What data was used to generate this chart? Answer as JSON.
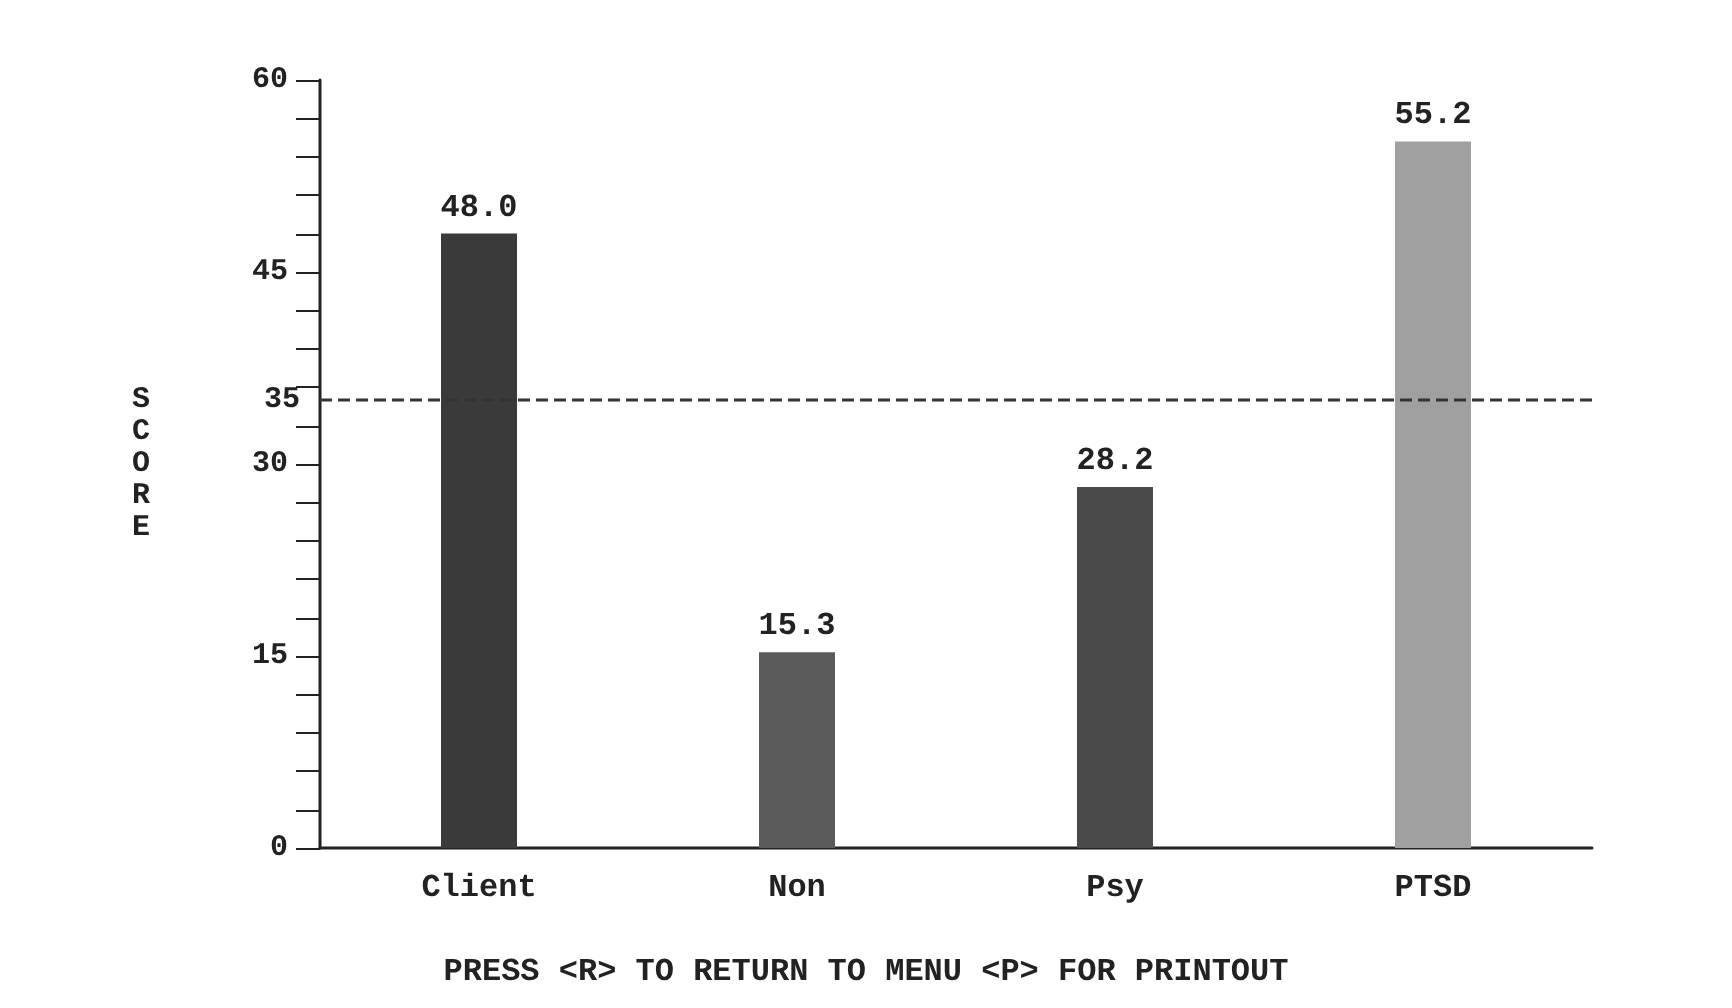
{
  "chart_data": {
    "type": "bar",
    "ylabel": "SCORE",
    "categories": [
      "Client",
      "Non",
      "Psy",
      "PTSD"
    ],
    "values": [
      48.0,
      15.3,
      28.2,
      55.2
    ],
    "colors": [
      "#3a3a3a",
      "#5a5a5a",
      "#4a4a4a",
      "#a0a0a0"
    ],
    "value_labels": [
      "48.0",
      "15.3",
      "28.2",
      "55.2"
    ],
    "ylim": [
      0,
      60
    ],
    "yticks": [
      0,
      {
        "value": 3,
        "label": null
      },
      {
        "value": 6,
        "label": null
      },
      {
        "value": 9,
        "label": null
      },
      {
        "value": 12,
        "label": null
      },
      15,
      {
        "value": 18,
        "label": null
      },
      {
        "value": 21,
        "label": null
      },
      {
        "value": 24,
        "label": null
      },
      {
        "value": 27,
        "label": null
      },
      30,
      {
        "value": 33,
        "label": null
      },
      {
        "value": 36,
        "label": null
      },
      {
        "value": 39,
        "label": null
      },
      {
        "value": 42,
        "label": null
      },
      45,
      {
        "value": 48,
        "label": null
      },
      {
        "value": 51,
        "label": null
      },
      {
        "value": 54,
        "label": null
      },
      {
        "value": 57,
        "label": null
      },
      60
    ],
    "ref_lines": [
      {
        "axis": "y",
        "value": 35,
        "label": "35",
        "line_style": "dashed",
        "color": "#333333"
      }
    ],
    "annotations": [
      "PRESS <R> TO RETURN TO MENU <P> FOR PRINTOUT"
    ],
    "grid": false
  }
}
